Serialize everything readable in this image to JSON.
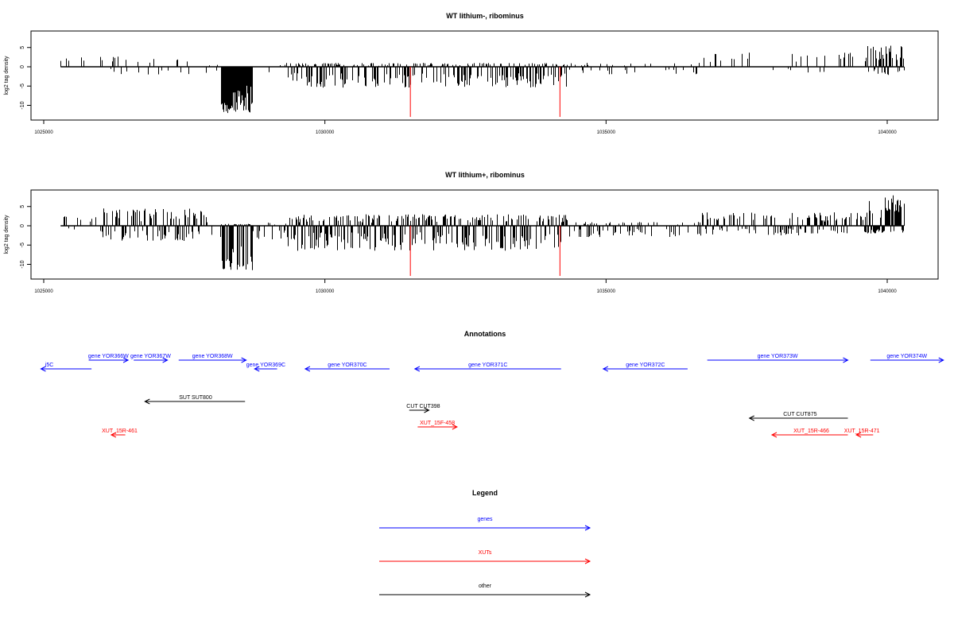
{
  "chart_data": [
    {
      "type": "bar",
      "title": "WT lithium-, ribominus",
      "xlabel": "",
      "ylabel": "log2 tag density",
      "xlim": [
        1025000,
        1040000
      ],
      "ylim": [
        -13,
        8
      ],
      "x_ticks": [
        1025000,
        1030000,
        1035000,
        1040000
      ],
      "y_ticks": [
        -10,
        -5,
        0,
        5
      ],
      "x_tick_labels": [
        "1025000",
        "1030000",
        "1035000",
        "1040000"
      ],
      "y_tick_labels": [
        "-10",
        "-5",
        "0",
        "5"
      ],
      "baseline_range": [
        1025300,
        1040300
      ],
      "red_markers": [
        {
          "x": 1031520,
          "y": -13
        },
        {
          "x": 1034180,
          "y": -13
        }
      ],
      "signal_regions": [
        {
          "x0": 1025300,
          "x1": 1026000,
          "density": 0.06,
          "pos": 2.5,
          "neg": 0
        },
        {
          "x0": 1026000,
          "x1": 1027900,
          "density": 0.18,
          "pos": 3.0,
          "neg": -2.0
        },
        {
          "x0": 1027900,
          "x1": 1028150,
          "density": 0.2,
          "pos": 0.5,
          "neg": -3.0
        },
        {
          "x0": 1028150,
          "x1": 1028700,
          "density": 1.0,
          "pos": 0,
          "neg": -12.0
        },
        {
          "x0": 1028700,
          "x1": 1029300,
          "density": 0.15,
          "pos": 0.5,
          "neg": -2.5
        },
        {
          "x0": 1029300,
          "x1": 1034300,
          "density": 0.65,
          "pos": 1.0,
          "neg": -5.5
        },
        {
          "x0": 1034300,
          "x1": 1036700,
          "density": 0.2,
          "pos": 1.0,
          "neg": -2.0
        },
        {
          "x0": 1036700,
          "x1": 1039600,
          "density": 0.12,
          "pos": 4.0,
          "neg": -1.5
        },
        {
          "x0": 1039600,
          "x1": 1040300,
          "density": 0.7,
          "pos": 5.5,
          "neg": -2.5
        }
      ]
    },
    {
      "type": "bar",
      "title": "WT lithium+, ribominus",
      "xlabel": "",
      "ylabel": "log2 tag density",
      "xlim": [
        1025000,
        1040000
      ],
      "ylim": [
        -13,
        8
      ],
      "x_ticks": [
        1025000,
        1030000,
        1035000,
        1040000
      ],
      "y_ticks": [
        -10,
        -5,
        0,
        5
      ],
      "x_tick_labels": [
        "1025000",
        "1030000",
        "1035000",
        "1040000"
      ],
      "y_tick_labels": [
        "-10",
        "-5",
        "0",
        "5"
      ],
      "baseline_range": [
        1025300,
        1040300
      ],
      "red_markers": [
        {
          "x": 1031520,
          "y": -13
        },
        {
          "x": 1034180,
          "y": -13
        }
      ],
      "signal_regions": [
        {
          "x0": 1025300,
          "x1": 1026000,
          "density": 0.3,
          "pos": 2.5,
          "neg": -1.5
        },
        {
          "x0": 1026000,
          "x1": 1027900,
          "density": 0.6,
          "pos": 4.5,
          "neg": -4.0
        },
        {
          "x0": 1027900,
          "x1": 1028150,
          "density": 0.3,
          "pos": 1.0,
          "neg": -4.0
        },
        {
          "x0": 1028150,
          "x1": 1028700,
          "density": 1.0,
          "pos": 0.5,
          "neg": -11.5
        },
        {
          "x0": 1028700,
          "x1": 1029300,
          "density": 0.3,
          "pos": 1.0,
          "neg": -3.5
        },
        {
          "x0": 1029300,
          "x1": 1034300,
          "density": 0.75,
          "pos": 3.0,
          "neg": -6.5
        },
        {
          "x0": 1034300,
          "x1": 1036700,
          "density": 0.3,
          "pos": 1.0,
          "neg": -3.0
        },
        {
          "x0": 1036700,
          "x1": 1039600,
          "density": 0.5,
          "pos": 3.5,
          "neg": -2.5
        },
        {
          "x0": 1039600,
          "x1": 1040300,
          "density": 1.0,
          "pos": 8.0,
          "neg": -2.0
        }
      ]
    }
  ],
  "annotations": {
    "title": "Annotations",
    "xlim": [
      1025000,
      1040000
    ],
    "features": [
      {
        "label": "gene YOR365C",
        "display": "i5C",
        "color": "#0000ff",
        "dir": "left",
        "start": 1024950,
        "end": 1025850,
        "row": 1,
        "label_x": 1025100
      },
      {
        "label": "gene YOR366W",
        "display": "gene YOR366W",
        "color": "#0000ff",
        "dir": "right",
        "start": 1025800,
        "end": 1026500,
        "row": 0,
        "label_x": 1026150
      },
      {
        "label": "gene YOR367W",
        "display": "gene YOR367W",
        "color": "#0000ff",
        "dir": "right",
        "start": 1026600,
        "end": 1027200,
        "row": 0,
        "label_x": 1026900
      },
      {
        "label": "gene YOR368W",
        "display": "gene YOR368W",
        "color": "#0000ff",
        "dir": "right",
        "start": 1027400,
        "end": 1028600,
        "row": 0,
        "label_x": 1028000
      },
      {
        "label": "gene YOR369C",
        "display": "gene YOR369C",
        "color": "#0000ff",
        "dir": "left",
        "start": 1028750,
        "end": 1029150,
        "row": 1,
        "label_x": 1028950
      },
      {
        "label": "gene YOR370C",
        "display": "gene YOR370C",
        "color": "#0000ff",
        "dir": "left",
        "start": 1029650,
        "end": 1031150,
        "row": 1,
        "label_x": 1030400
      },
      {
        "label": "gene YOR371C",
        "display": "gene YOR371C",
        "color": "#0000ff",
        "dir": "left",
        "start": 1031600,
        "end": 1034200,
        "row": 1,
        "label_x": 1032900
      },
      {
        "label": "gene YOR372C",
        "display": "gene YOR372C",
        "color": "#0000ff",
        "dir": "left",
        "start": 1034950,
        "end": 1036450,
        "row": 1,
        "label_x": 1035700
      },
      {
        "label": "gene YOR373W",
        "display": "gene YOR373W",
        "color": "#0000ff",
        "dir": "right",
        "start": 1036800,
        "end": 1039300,
        "row": 0,
        "label_x": 1038050
      },
      {
        "label": "gene YOR374W",
        "display": "gene YOR374W",
        "color": "#0000ff",
        "dir": "right",
        "start": 1039700,
        "end": 1041000,
        "row": 0,
        "label_x": 1040350
      },
      {
        "label": "SUT SUT800",
        "display": "SUT SUT800",
        "color": "#000000",
        "dir": "left",
        "start": 1026800,
        "end": 1028580,
        "row": 2,
        "label_x": 1027700
      },
      {
        "label": "CUT CUT398",
        "display": "CUT CUT398",
        "color": "#000000",
        "dir": "right",
        "start": 1031500,
        "end": 1031850,
        "row": 3,
        "label_x": 1031750
      },
      {
        "label": "CUT CUT875",
        "display": "CUT CUT875",
        "color": "#000000",
        "dir": "left",
        "start": 1037550,
        "end": 1039300,
        "row": 4,
        "label_x": 1038450
      },
      {
        "label": "XUT_15R-461",
        "display": "XUT_15R-461",
        "color": "#ff0000",
        "dir": "left",
        "start": 1026200,
        "end": 1026450,
        "row": 5,
        "label_x": 1026350
      },
      {
        "label": "XUT_15F-458",
        "display": "XUT_15F-458",
        "color": "#ff0000",
        "dir": "right",
        "start": 1031650,
        "end": 1032350,
        "row": 6,
        "label_x": 1032000
      },
      {
        "label": "XUT_15R-466",
        "display": "XUT_15R-466",
        "color": "#ff0000",
        "dir": "left",
        "start": 1037950,
        "end": 1039300,
        "row": 5,
        "label_x": 1038650
      },
      {
        "label": "XUT_15R-471",
        "display": "XUT_15R-471",
        "color": "#ff0000",
        "dir": "left",
        "start": 1039450,
        "end": 1039750,
        "row": 5,
        "label_x": 1039550
      }
    ]
  },
  "legend": {
    "title": "Legend",
    "items": [
      {
        "label": "genes",
        "color": "#0000ff"
      },
      {
        "label": "XUTs",
        "color": "#ff0000"
      },
      {
        "label": "other",
        "color": "#000000"
      }
    ]
  }
}
